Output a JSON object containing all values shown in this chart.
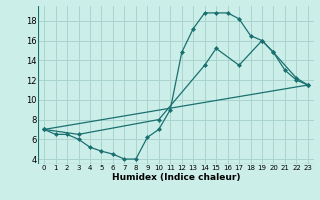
{
  "xlabel": "Humidex (Indice chaleur)",
  "bg_color": "#cceee8",
  "grid_color": "#aad4ce",
  "line_color": "#1a7070",
  "xlim": [
    -0.5,
    23.5
  ],
  "ylim": [
    3.5,
    19.5
  ],
  "xticks": [
    0,
    1,
    2,
    3,
    4,
    5,
    6,
    7,
    8,
    9,
    10,
    11,
    12,
    13,
    14,
    15,
    16,
    17,
    18,
    19,
    20,
    21,
    22,
    23
  ],
  "yticks": [
    4,
    6,
    8,
    10,
    12,
    14,
    16,
    18
  ],
  "line1_x": [
    0,
    1,
    2,
    3,
    4,
    5,
    6,
    7,
    8,
    9,
    10,
    11,
    12,
    13,
    14,
    15,
    16,
    17,
    18,
    19,
    20,
    21,
    22,
    23
  ],
  "line1_y": [
    7.0,
    6.5,
    6.5,
    6.0,
    5.2,
    4.8,
    4.5,
    4.0,
    4.0,
    6.2,
    7.0,
    9.0,
    14.8,
    17.2,
    18.8,
    18.8,
    18.8,
    18.2,
    16.5,
    16.0,
    14.8,
    13.0,
    12.0,
    11.5
  ],
  "line2_x": [
    0,
    3,
    10,
    14,
    15,
    17,
    19,
    20,
    22,
    23
  ],
  "line2_y": [
    7.0,
    6.5,
    8.0,
    13.5,
    15.2,
    13.5,
    16.0,
    14.8,
    12.2,
    11.5
  ],
  "line3_x": [
    0,
    23
  ],
  "line3_y": [
    7.0,
    11.5
  ]
}
